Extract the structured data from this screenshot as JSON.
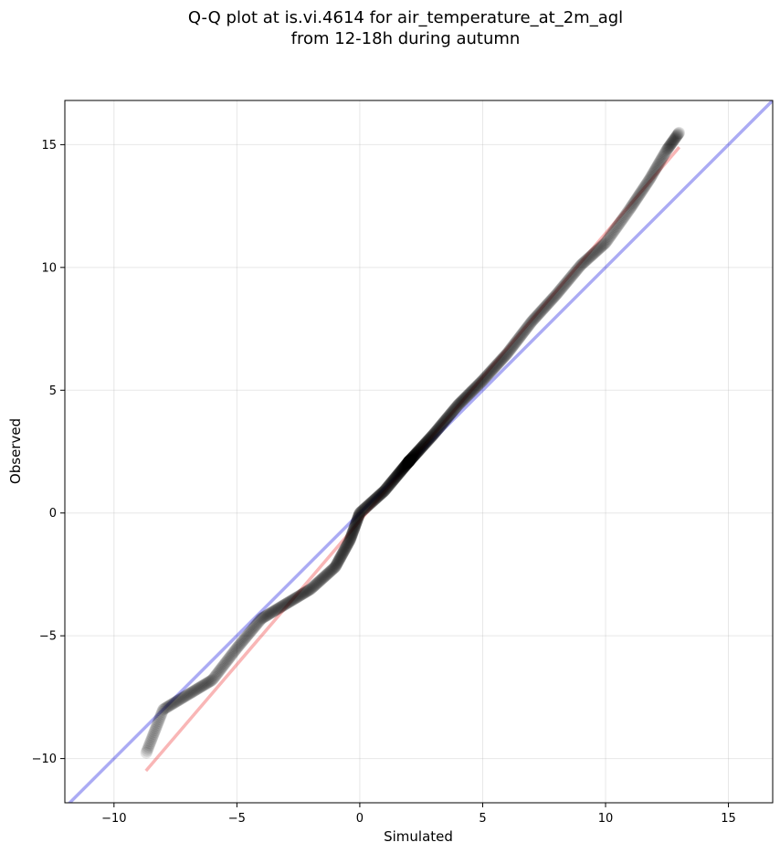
{
  "chart_data": {
    "type": "scatter",
    "title_line1": "Q-Q plot at is.vi.4614 for air_temperature_at_2m_agl",
    "title_line2": "from 12-18h during autumn",
    "xlabel": "Simulated",
    "ylabel": "Observed",
    "xlim": [
      -12,
      16.8
    ],
    "ylim": [
      -11.8,
      16.8
    ],
    "xticks": [
      -10,
      -5,
      0,
      5,
      10,
      15
    ],
    "yticks": [
      -10,
      -5,
      0,
      5,
      10,
      15
    ],
    "xtick_labels": [
      "−10",
      "−5",
      "0",
      "5",
      "10",
      "15"
    ],
    "ytick_labels": [
      "−10",
      "−5",
      "0",
      "5",
      "10",
      "15"
    ],
    "grid": true,
    "colors": {
      "points": "#000000",
      "identity_line": "#0000dd",
      "fit_line": "#ee2222"
    },
    "identity_line": {
      "x": [
        -12,
        16.8
      ],
      "y": [
        -12,
        16.8
      ]
    },
    "fit_line": {
      "x": [
        -8.7,
        13.0
      ],
      "y": [
        -10.5,
        14.9
      ]
    },
    "quantile_anchors": {
      "x": [
        -8.7,
        -8.0,
        -7.0,
        -6.0,
        -5.0,
        -4.0,
        -3.0,
        -2.0,
        -1.0,
        -0.4,
        0.0,
        1.0,
        2.0,
        3.0,
        4.0,
        5.0,
        6.0,
        7.0,
        8.0,
        9.0,
        10.0,
        11.0,
        11.8,
        12.5,
        13.0
      ],
      "y": [
        -9.8,
        -8.0,
        -7.4,
        -6.8,
        -5.5,
        -4.3,
        -3.7,
        -3.1,
        -2.2,
        -1.1,
        0.0,
        0.9,
        2.1,
        3.2,
        4.4,
        5.4,
        6.5,
        7.8,
        8.9,
        10.1,
        11.0,
        12.4,
        13.6,
        14.8,
        15.5
      ]
    },
    "n_points": 900
  }
}
